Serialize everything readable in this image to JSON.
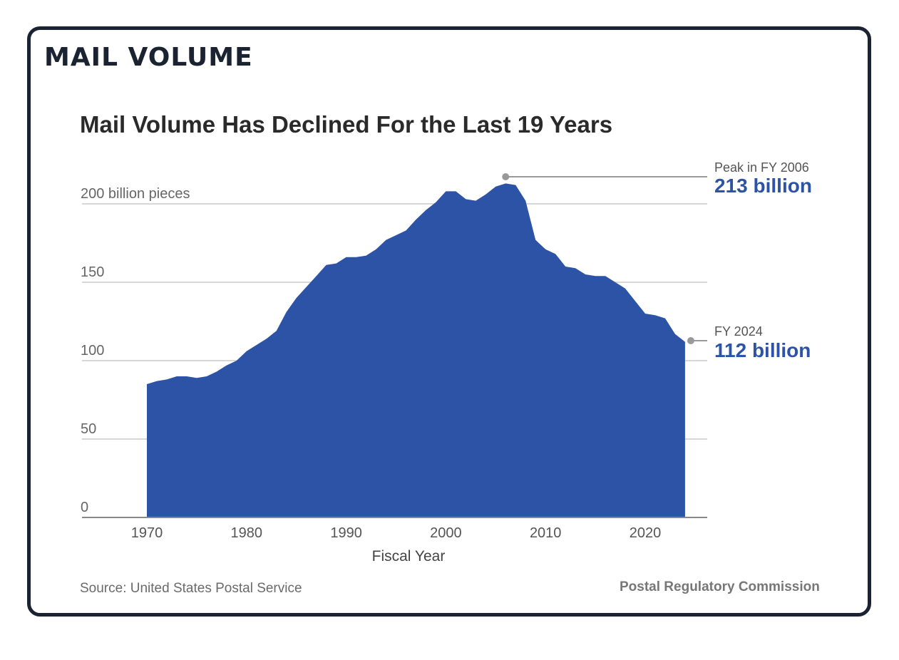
{
  "header": {
    "section_title": "MAIL VOLUME"
  },
  "chart_data": {
    "type": "area",
    "title": "Mail Volume Has Declined For the Last 19 Years",
    "xlabel": "Fiscal Year",
    "ylabel": "billion pieces",
    "y_unit_label": "200 billion pieces",
    "xlim": [
      1965,
      2026
    ],
    "ylim": [
      0,
      200
    ],
    "x_ticks": [
      1970,
      1980,
      1990,
      2000,
      2010,
      2020
    ],
    "y_ticks": [
      0,
      50,
      100,
      150,
      200
    ],
    "y_tick_labels": [
      "0",
      "50",
      "100",
      "150",
      "200 billion pieces"
    ],
    "series": [
      {
        "name": "Mail Volume",
        "color": "#2c53a5",
        "x": [
          1970,
          1971,
          1972,
          1973,
          1974,
          1975,
          1976,
          1977,
          1978,
          1979,
          1980,
          1981,
          1982,
          1983,
          1984,
          1985,
          1986,
          1987,
          1988,
          1989,
          1990,
          1991,
          1992,
          1993,
          1994,
          1995,
          1996,
          1997,
          1998,
          1999,
          2000,
          2001,
          2002,
          2003,
          2004,
          2005,
          2006,
          2007,
          2008,
          2009,
          2010,
          2011,
          2012,
          2013,
          2014,
          2015,
          2016,
          2017,
          2018,
          2019,
          2020,
          2021,
          2022,
          2023,
          2024
        ],
        "values": [
          85,
          87,
          88,
          90,
          90,
          89,
          90,
          93,
          97,
          100,
          106,
          110,
          114,
          119,
          131,
          140,
          147,
          154,
          161,
          162,
          166,
          166,
          167,
          171,
          177,
          180,
          183,
          190,
          196,
          201,
          208,
          208,
          203,
          202,
          206,
          211,
          213,
          212,
          202,
          177,
          171,
          168,
          160,
          159,
          155,
          154,
          154,
          150,
          146,
          138,
          130,
          129,
          127,
          117,
          112
        ]
      }
    ],
    "annotations": [
      {
        "label": "Peak in FY 2006",
        "value_label": "213 billion",
        "x": 2006,
        "y": 213
      },
      {
        "label": "FY 2024",
        "value_label": "112 billion",
        "x": 2024,
        "y": 112
      }
    ]
  },
  "colors": {
    "area": "#2c53a5",
    "annotation_value": "#2c53a5",
    "grid": "#d7d7d7",
    "axis": "#888888",
    "border": "#1b2333"
  },
  "footer": {
    "source": "Source: United States Postal Service",
    "credit": "Postal Regulatory Commission"
  }
}
